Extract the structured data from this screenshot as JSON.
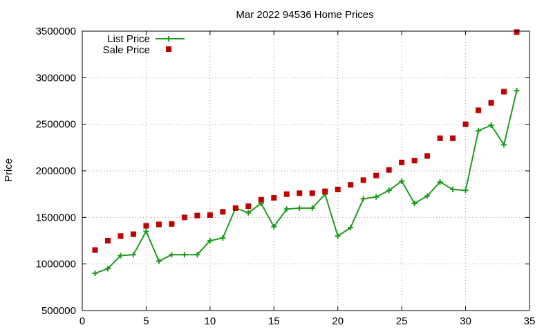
{
  "chart_data": {
    "type": "line",
    "title": "Mar 2022 94536 Home Prices",
    "xlabel": "",
    "ylabel": "Price",
    "xlim": [
      0,
      35
    ],
    "ylim": [
      500000,
      3500000
    ],
    "xticks": [
      0,
      5,
      10,
      15,
      20,
      25,
      30,
      35
    ],
    "yticks": [
      500000,
      1000000,
      1500000,
      2000000,
      2500000,
      3000000,
      3500000
    ],
    "grid": true,
    "legend_position": "top-left",
    "series": [
      {
        "name": "List Price",
        "style": "line+crosses",
        "color": "#1a9c1a",
        "x": [
          1,
          2,
          3,
          4,
          5,
          6,
          7,
          8,
          9,
          10,
          11,
          12,
          13,
          14,
          15,
          16,
          17,
          18,
          19,
          20,
          21,
          22,
          23,
          24,
          25,
          26,
          27,
          28,
          29,
          30,
          31,
          32,
          33,
          34
        ],
        "values": [
          900000,
          950000,
          1090000,
          1100000,
          1350000,
          1030000,
          1100000,
          1100000,
          1100000,
          1250000,
          1280000,
          1600000,
          1550000,
          1650000,
          1400000,
          1590000,
          1600000,
          1600000,
          1750000,
          1300000,
          1390000,
          1700000,
          1720000,
          1790000,
          1890000,
          1650000,
          1730000,
          1880000,
          1800000,
          1790000,
          2430000,
          2490000,
          2280000,
          2860000
        ]
      },
      {
        "name": "Sale Price",
        "style": "squares",
        "color": "#c00000",
        "x": [
          1,
          2,
          3,
          4,
          5,
          6,
          7,
          8,
          9,
          10,
          11,
          12,
          13,
          14,
          15,
          16,
          17,
          18,
          19,
          20,
          21,
          22,
          23,
          24,
          25,
          26,
          27,
          28,
          29,
          30,
          31,
          32,
          33,
          34
        ],
        "values": [
          1150000,
          1250000,
          1300000,
          1320000,
          1410000,
          1425000,
          1430000,
          1500000,
          1520000,
          1525000,
          1560000,
          1600000,
          1620000,
          1690000,
          1710000,
          1750000,
          1760000,
          1760000,
          1780000,
          1800000,
          1850000,
          1900000,
          1950000,
          2010000,
          2090000,
          2110000,
          2160000,
          2350000,
          2350000,
          2500000,
          2650000,
          2730000,
          2850000,
          3490000
        ]
      }
    ]
  }
}
